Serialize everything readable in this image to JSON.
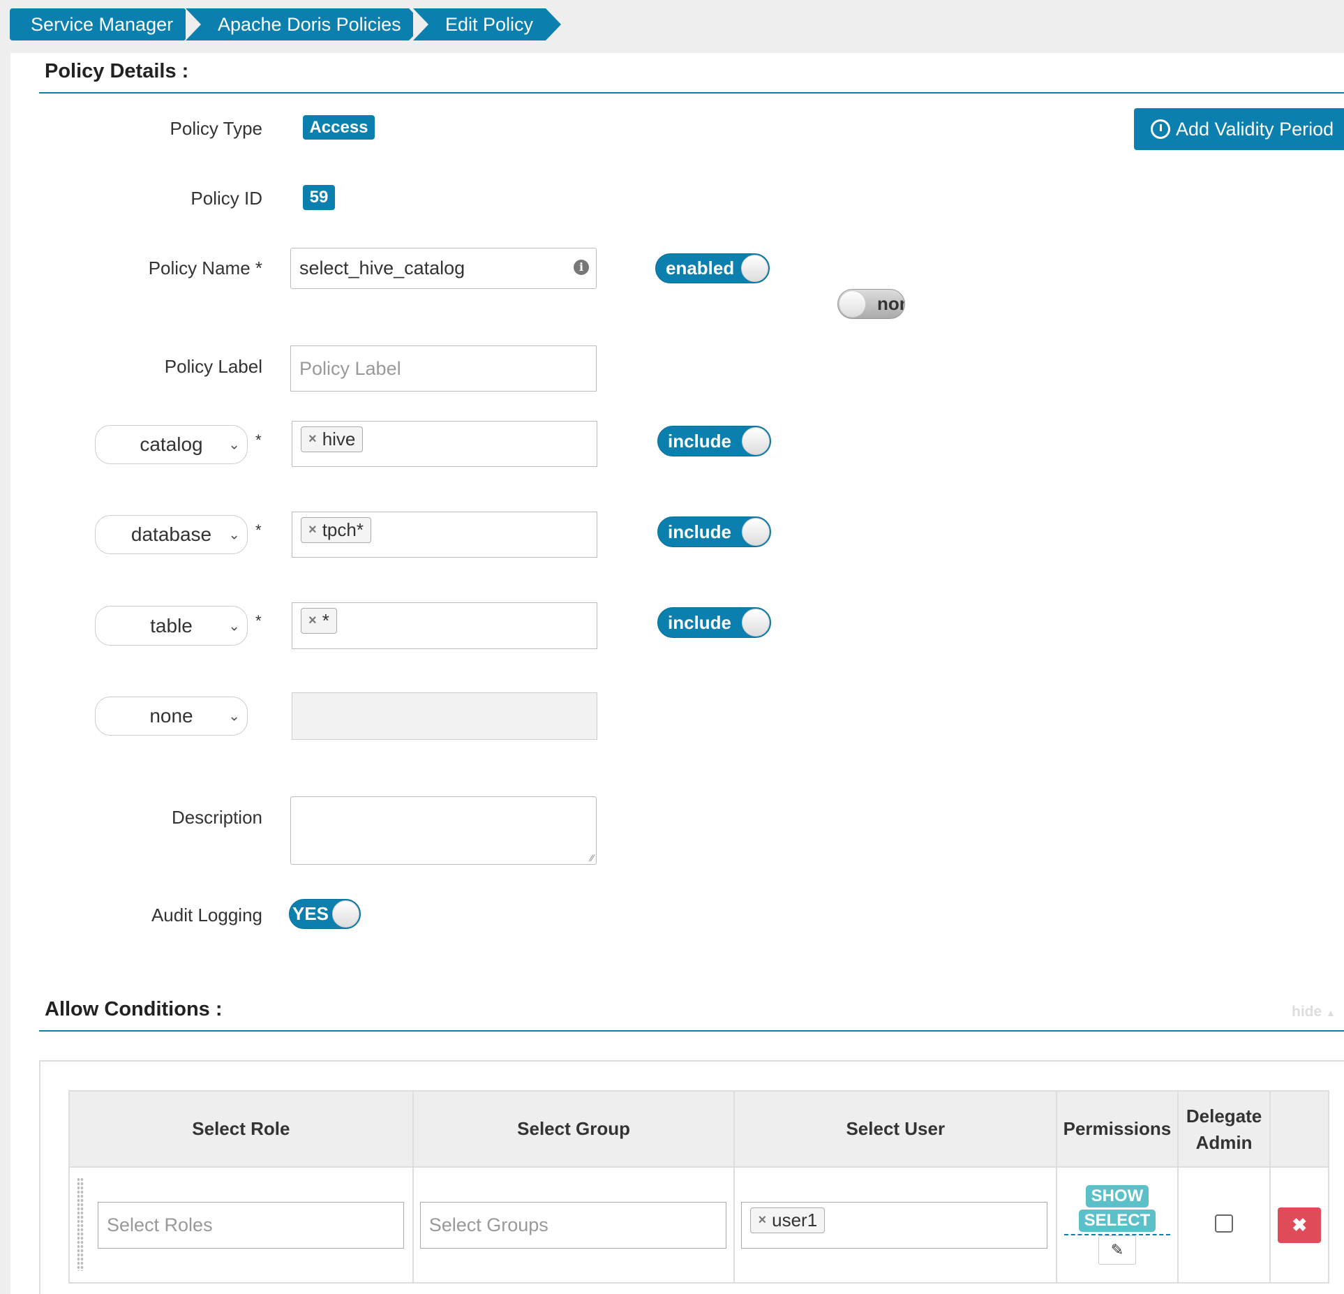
{
  "breadcrumb": [
    "Service Manager",
    "Apache Doris Policies",
    "Edit Policy"
  ],
  "policy_details": {
    "title": "Policy Details :",
    "policy_type_label": "Policy Type",
    "policy_type": "Access",
    "add_validity": "Add Validity Period",
    "policy_id_label": "Policy ID",
    "policy_id": "59",
    "policy_name_label": "Policy Name *",
    "policy_name": "select_hive_catalog",
    "enabled_toggle": "enabled",
    "override_toggle": "non",
    "policy_label_label": "Policy Label",
    "policy_label_placeholder": "Policy Label",
    "resources": [
      {
        "type": "catalog",
        "values": [
          "hive"
        ],
        "mode": "include",
        "required": "*"
      },
      {
        "type": "database",
        "values": [
          "tpch*"
        ],
        "mode": "include",
        "required": "*"
      },
      {
        "type": "table",
        "values": [
          "*"
        ],
        "mode": "include",
        "required": "*"
      },
      {
        "type": "none"
      }
    ],
    "description_label": "Description",
    "audit_label": "Audit Logging",
    "audit_value": "YES"
  },
  "allow": {
    "title": "Allow Conditions :",
    "hide": "hide",
    "headers": [
      "Select Role",
      "Select Group",
      "Select User",
      "Permissions",
      "Delegate Admin"
    ],
    "row": {
      "roles_placeholder": "Select Roles",
      "groups_placeholder": "Select Groups",
      "users": [
        "user1"
      ],
      "permissions": [
        "SHOW",
        "SELECT"
      ],
      "delegate_admin": false
    }
  },
  "colors": {
    "primary": "#0b7fad",
    "permission": "#5bc0c8",
    "danger": "#e04b5a"
  }
}
